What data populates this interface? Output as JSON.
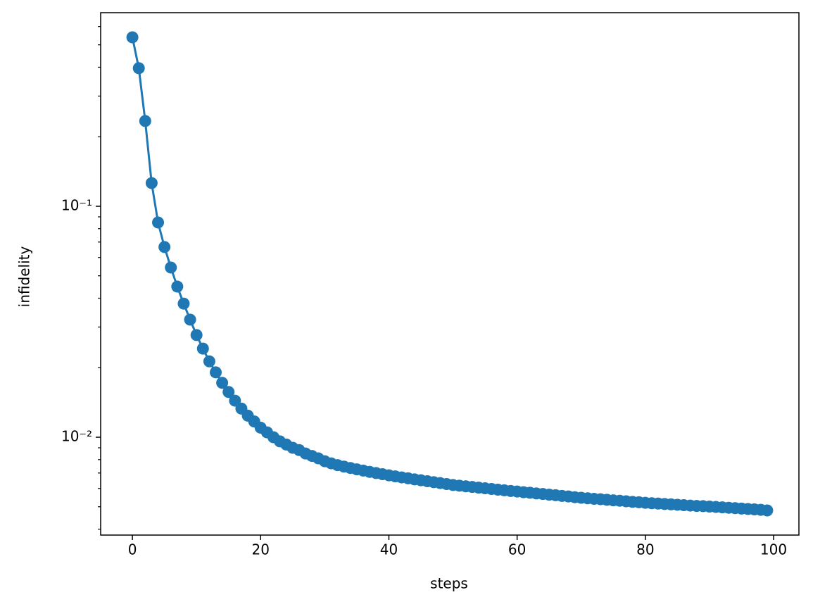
{
  "chart_data": {
    "type": "line",
    "log_y": true,
    "xlabel": "steps",
    "ylabel": "infidelity",
    "x": [
      0,
      1,
      2,
      3,
      4,
      5,
      6,
      7,
      8,
      9,
      10,
      11,
      12,
      13,
      14,
      15,
      16,
      17,
      18,
      19,
      20,
      21,
      22,
      23,
      24,
      25,
      26,
      27,
      28,
      29,
      30,
      31,
      32,
      33,
      34,
      35,
      36,
      37,
      38,
      39,
      40,
      41,
      42,
      43,
      44,
      45,
      46,
      47,
      48,
      49,
      50,
      51,
      52,
      53,
      54,
      55,
      56,
      57,
      58,
      59,
      60,
      61,
      62,
      63,
      64,
      65,
      66,
      67,
      68,
      69,
      70,
      71,
      72,
      73,
      74,
      75,
      76,
      77,
      78,
      79,
      80,
      81,
      82,
      83,
      84,
      85,
      86,
      87,
      88,
      89,
      90,
      91,
      92,
      93,
      94,
      95,
      96,
      97,
      98,
      99
    ],
    "series": [
      {
        "color": "#1f77b4",
        "marker": "o",
        "values": [
          0.539,
          0.396,
          0.234,
          0.126,
          0.0851,
          0.0666,
          0.0543,
          0.0449,
          0.0379,
          0.0323,
          0.0277,
          0.0242,
          0.0213,
          0.0191,
          0.0172,
          0.0157,
          0.0144,
          0.0133,
          0.0124,
          0.0117,
          0.011,
          0.0105,
          0.01,
          0.0096,
          0.0093,
          0.009,
          0.0088,
          0.0085,
          0.0083,
          0.0081,
          0.00787,
          0.00771,
          0.00757,
          0.00746,
          0.00736,
          0.00726,
          0.00717,
          0.00708,
          0.007,
          0.00692,
          0.00684,
          0.00677,
          0.0067,
          0.00664,
          0.00657,
          0.00651,
          0.00645,
          0.00639,
          0.00633,
          0.00627,
          0.00621,
          0.00617,
          0.00613,
          0.00609,
          0.00605,
          0.00601,
          0.00597,
          0.00593,
          0.00589,
          0.00585,
          0.00582,
          0.00578,
          0.00575,
          0.00571,
          0.00568,
          0.00564,
          0.00561,
          0.00557,
          0.00554,
          0.0055,
          0.00547,
          0.00544,
          0.00541,
          0.00539,
          0.00536,
          0.00533,
          0.00531,
          0.00528,
          0.00525,
          0.00523,
          0.0052,
          0.00518,
          0.00516,
          0.00514,
          0.00512,
          0.0051,
          0.00508,
          0.00506,
          0.00504,
          0.00503,
          0.00501,
          0.00499,
          0.00497,
          0.00495,
          0.00493,
          0.00491,
          0.00489,
          0.00487,
          0.00485,
          0.00482
        ]
      }
    ],
    "xlim": [
      -4.95,
      103.95
    ],
    "xticks": [
      0,
      20,
      40,
      60,
      80,
      100
    ],
    "ylim": [
      0.00377,
      0.689
    ],
    "yticks": [
      {
        "value": 0.1,
        "label": "10⁻¹"
      },
      {
        "value": 0.01,
        "label": "10⁻²"
      }
    ]
  }
}
